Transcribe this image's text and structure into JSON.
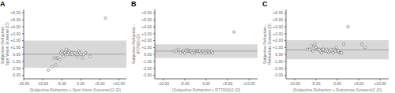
{
  "chart_data": [
    {
      "type": "scatter",
      "title": "A",
      "x_label": "(Subjective Refraction + Spot Vision Screener)/2 (D)",
      "y_label": "Subjective Refraction -\nSpot Vision Screener (D)",
      "color": "#444444",
      "marker": "hollow",
      "mean_line": {
        "value": 0.05,
        "color": "#888888"
      },
      "loa_band": {
        "values": [
          -1.9,
          2.0
        ],
        "color": "#d8d8d8"
      },
      "xlim": [
        -15.0,
        12.0
      ],
      "ylim": [
        -3.5,
        6.5
      ],
      "xticks": [
        {
          "value": -15.0,
          "label": "-15.00"
        },
        {
          "value": -10.0,
          "label": "-10.00"
        },
        {
          "value": -5.0,
          "label": "-5.00"
        },
        {
          "value": 0.0,
          "label": "0.00"
        },
        {
          "value": 5.0,
          "label": "+5.00"
        },
        {
          "value": 10.0,
          "label": "+10.00"
        }
      ],
      "yticks": [
        {
          "value": -3.0,
          "label": "-3.00"
        },
        {
          "value": -2.0,
          "label": "-2.00"
        },
        {
          "value": -1.0,
          "label": "-1.00"
        },
        {
          "value": 0.0,
          "label": "0.00"
        },
        {
          "value": 1.0,
          "label": "+1.00"
        },
        {
          "value": 2.0,
          "label": "+2.00"
        },
        {
          "value": 3.0,
          "label": "+3.00"
        },
        {
          "value": 4.0,
          "label": "+4.00"
        },
        {
          "value": 5.0,
          "label": "+5.00"
        },
        {
          "value": 6.0,
          "label": "+6.00"
        }
      ],
      "x": [
        -8.5,
        -7.5,
        -7.0,
        -6.5,
        -6.25,
        -6.0,
        -5.5,
        -5.25,
        -5.0,
        -4.75,
        -4.5,
        -4.25,
        -4.0,
        -3.75,
        -3.5,
        -3.25,
        -3.0,
        -2.75,
        -2.5,
        -2.25,
        -2.0,
        -1.5,
        -1.25,
        -1.0,
        -0.75,
        -0.5,
        -0.25,
        0.0,
        0.5,
        0.75,
        1.25,
        2.5,
        6.5
      ],
      "values": [
        -2.25,
        -1.75,
        -0.5,
        -1.5,
        -0.5,
        -0.5,
        -0.75,
        0.25,
        0.5,
        0.0,
        -0.25,
        0.25,
        0.5,
        0.75,
        0.0,
        0.25,
        0.5,
        0.0,
        0.25,
        0.0,
        0.25,
        0.25,
        0.0,
        -0.25,
        0.0,
        0.5,
        0.25,
        0.0,
        -0.5,
        0.0,
        0.25,
        -0.25,
        5.25
      ]
    },
    {
      "type": "scatter",
      "title": "B",
      "x_label": "(Subjective Refraction + RT7000)/2 (D)",
      "y_label": "Subjective Refraction -\nRT7000 (D)",
      "color": "#444444",
      "marker": "hollow",
      "mean_line": {
        "value": 0.49,
        "color": "#888888"
      },
      "loa_band": {
        "values": [
          -0.48,
          1.46
        ],
        "color": "#d8d8d8"
      },
      "xlim": [
        -12.0,
        12.0
      ],
      "ylim": [
        -3.5,
        6.5
      ],
      "xticks": [
        {
          "value": -10.0,
          "label": "-10.00"
        },
        {
          "value": -5.0,
          "label": "-5.00"
        },
        {
          "value": 0.0,
          "label": "0.00"
        },
        {
          "value": 5.0,
          "label": "+5.00"
        },
        {
          "value": 10.0,
          "label": "+10.00"
        }
      ],
      "yticks": [
        {
          "value": -3.0,
          "label": "-3.00"
        },
        {
          "value": -2.0,
          "label": "-2.00"
        },
        {
          "value": -1.0,
          "label": "-1.00"
        },
        {
          "value": 0.0,
          "label": "0.00"
        },
        {
          "value": 1.0,
          "label": "+1.00"
        },
        {
          "value": 2.0,
          "label": "+2.00"
        },
        {
          "value": 3.0,
          "label": "+3.00"
        },
        {
          "value": 4.0,
          "label": "+4.00"
        },
        {
          "value": 5.0,
          "label": "+5.00"
        },
        {
          "value": 6.0,
          "label": "+6.00"
        }
      ],
      "x": [
        -7.5,
        -7.0,
        -6.5,
        -6.0,
        -5.5,
        -5.25,
        -5.0,
        -4.75,
        -4.5,
        -4.25,
        -4.0,
        -3.75,
        -3.5,
        -3.25,
        -3.0,
        -2.75,
        -2.5,
        -2.25,
        -2.0,
        -1.75,
        -1.5,
        -1.25,
        -1.0,
        -0.75,
        -0.5,
        -0.25,
        0.0,
        0.25,
        0.5,
        0.75,
        1.0,
        1.25,
        1.5,
        6.5
      ],
      "values": [
        0.5,
        0.5,
        0.75,
        0.25,
        0.5,
        0.5,
        0.25,
        0.5,
        0.75,
        0.5,
        0.5,
        0.5,
        0.5,
        0.25,
        0.5,
        0.25,
        0.5,
        0.5,
        0.5,
        0.5,
        0.5,
        0.25,
        0.5,
        0.5,
        0.25,
        0.5,
        0.25,
        0.5,
        0.5,
        0.25,
        0.5,
        0.5,
        0.25,
        3.25
      ]
    },
    {
      "type": "scatter",
      "title": "C",
      "x_label": "(Subjective Refraction + Retinomax Screeen)/2 (D)",
      "y_label": "Subjective Refraction -\nRetinomax Screeen (D)",
      "color": "#444444",
      "marker": "hollow",
      "mean_line": {
        "value": 0.69,
        "color": "#888888"
      },
      "loa_band": {
        "values": [
          -0.7,
          2.08
        ],
        "color": "#d8d8d8"
      },
      "xlim": [
        -12.0,
        12.0
      ],
      "ylim": [
        -3.5,
        6.5
      ],
      "xticks": [
        {
          "value": -10.0,
          "label": "-10.00"
        },
        {
          "value": -5.0,
          "label": "-5.00"
        },
        {
          "value": 0.0,
          "label": "0.00"
        },
        {
          "value": 5.0,
          "label": "+5.00"
        },
        {
          "value": 10.0,
          "label": "+10.00"
        }
      ],
      "yticks": [
        {
          "value": -3.0,
          "label": "-3.00"
        },
        {
          "value": -2.0,
          "label": "-2.00"
        },
        {
          "value": -1.0,
          "label": "-1.00"
        },
        {
          "value": 0.0,
          "label": "0.00"
        },
        {
          "value": 1.0,
          "label": "+1.00"
        },
        {
          "value": 2.0,
          "label": "+2.00"
        },
        {
          "value": 3.0,
          "label": "+3.00"
        },
        {
          "value": 4.0,
          "label": "+4.00"
        },
        {
          "value": 5.0,
          "label": "+5.00"
        },
        {
          "value": 6.0,
          "label": "+6.00"
        }
      ],
      "x": [
        -7.0,
        -6.5,
        -6.0,
        -5.75,
        -5.5,
        -5.25,
        -5.0,
        -4.75,
        -4.5,
        -4.25,
        -4.0,
        -3.75,
        -3.5,
        -3.25,
        -3.0,
        -2.75,
        -2.5,
        -2.25,
        -2.0,
        -1.75,
        -1.5,
        -1.25,
        -1.0,
        -0.75,
        -0.5,
        -0.25,
        0.0,
        0.25,
        0.5,
        0.75,
        1.0,
        1.5,
        2.5,
        5.75,
        6.5
      ],
      "values": [
        0.75,
        0.75,
        1.25,
        0.5,
        1.25,
        1.5,
        1.0,
        0.75,
        0.75,
        0.75,
        0.5,
        0.25,
        0.75,
        0.75,
        0.5,
        0.5,
        0.75,
        0.5,
        0.25,
        0.5,
        0.75,
        0.5,
        0.25,
        0.75,
        0.5,
        1.0,
        0.5,
        0.5,
        0.25,
        0.25,
        0.25,
        1.5,
        4.0,
        1.5,
        1.0
      ]
    }
  ]
}
